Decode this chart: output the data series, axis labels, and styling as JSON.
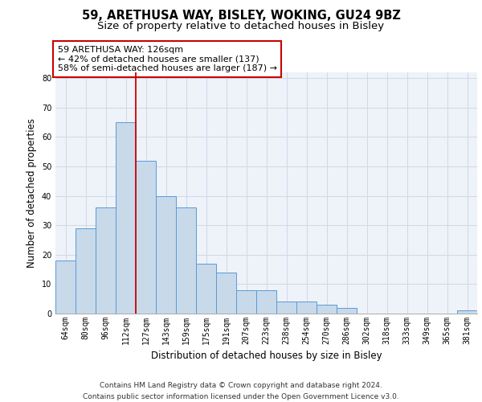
{
  "title_line1": "59, ARETHUSA WAY, BISLEY, WOKING, GU24 9BZ",
  "title_line2": "Size of property relative to detached houses in Bisley",
  "xlabel": "Distribution of detached houses by size in Bisley",
  "ylabel": "Number of detached properties",
  "categories": [
    "64sqm",
    "80sqm",
    "96sqm",
    "112sqm",
    "127sqm",
    "143sqm",
    "159sqm",
    "175sqm",
    "191sqm",
    "207sqm",
    "223sqm",
    "238sqm",
    "254sqm",
    "270sqm",
    "286sqm",
    "302sqm",
    "318sqm",
    "333sqm",
    "349sqm",
    "365sqm",
    "381sqm"
  ],
  "values": [
    18,
    29,
    36,
    65,
    52,
    40,
    36,
    17,
    14,
    8,
    8,
    4,
    4,
    3,
    2,
    0,
    0,
    0,
    0,
    0,
    1
  ],
  "bar_color": "#c8d9ea",
  "bar_edge_color": "#5b9bd5",
  "grid_color": "#d0d8e8",
  "background_color": "#ffffff",
  "plot_bg_color": "#eef2f9",
  "annotation_box_text": "59 ARETHUSA WAY: 126sqm\n← 42% of detached houses are smaller (137)\n58% of semi-detached houses are larger (187) →",
  "annotation_box_color": "#ffffff",
  "annotation_box_edge_color": "#cc0000",
  "vline_color": "#cc0000",
  "vline_x": 3.5,
  "ylim": [
    0,
    82
  ],
  "yticks": [
    0,
    10,
    20,
    30,
    40,
    50,
    60,
    70,
    80
  ],
  "footnote": "Contains HM Land Registry data © Crown copyright and database right 2024.\nContains public sector information licensed under the Open Government Licence v3.0.",
  "title_fontsize": 10.5,
  "subtitle_fontsize": 9.5,
  "axis_label_fontsize": 8.5,
  "tick_fontsize": 7,
  "annotation_fontsize": 8,
  "footnote_fontsize": 6.5
}
